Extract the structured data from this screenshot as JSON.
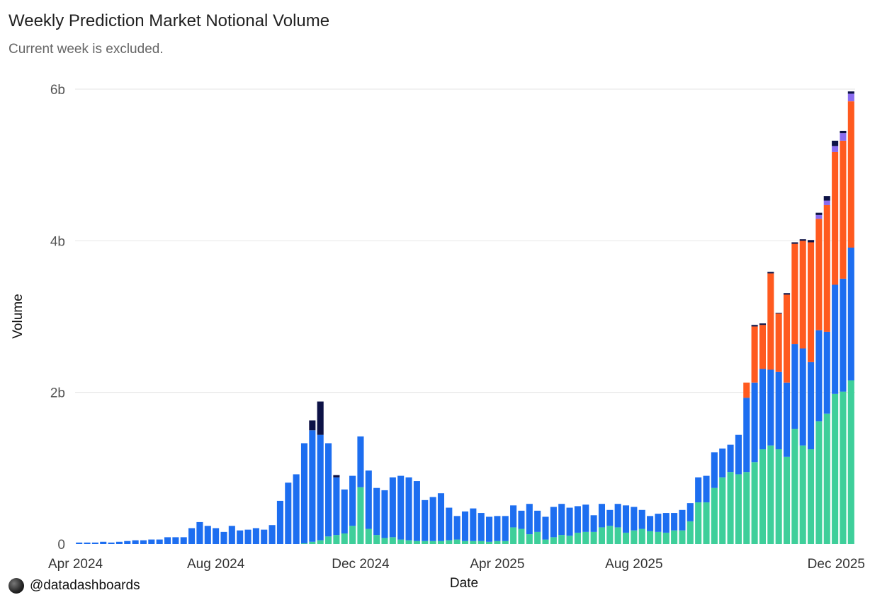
{
  "chart_data": {
    "type": "bar",
    "stacked": true,
    "title": "Weekly Prediction Market Notional Volume",
    "subtitle": "Current week is excluded.",
    "xlabel": "Date",
    "ylabel": "Volume",
    "y_ticks": [
      {
        "value": 0,
        "label": "0"
      },
      {
        "value": 2,
        "label": "2b"
      },
      {
        "value": 4,
        "label": "4b"
      },
      {
        "value": 6,
        "label": "6b"
      }
    ],
    "ylim": [
      0,
      6
    ],
    "y_unit": "billions",
    "x_ticks": [
      {
        "label": "Apr 2024",
        "week_index": 0
      },
      {
        "label": "Aug 2024",
        "week_index": 17
      },
      {
        "label": "Dec 2024",
        "week_index": 35
      },
      {
        "label": "Apr 2025",
        "week_index": 52
      },
      {
        "label": "Aug 2025",
        "week_index": 69
      },
      {
        "label": "Dec 2025",
        "week_index": 87
      }
    ],
    "grid": "horizontal",
    "legend": "none",
    "series": [
      {
        "color": "#3ecf9a",
        "values": [
          0,
          0,
          0,
          0,
          0,
          0,
          0,
          0,
          0,
          0,
          0,
          0,
          0,
          0,
          0,
          0,
          0,
          0,
          0,
          0,
          0,
          0,
          0,
          0,
          0,
          0,
          0,
          0,
          0.01,
          0.03,
          0.05,
          0.1,
          0.12,
          0.14,
          0.24,
          0.75,
          0.2,
          0.12,
          0.08,
          0.09,
          0.06,
          0.05,
          0.04,
          0.04,
          0.04,
          0.04,
          0.05,
          0.06,
          0.04,
          0.04,
          0.04,
          0.03,
          0.04,
          0.04,
          0.22,
          0.2,
          0.13,
          0.16,
          0.06,
          0.09,
          0.12,
          0.11,
          0.15,
          0.16,
          0.16,
          0.22,
          0.24,
          0.22,
          0.15,
          0.18,
          0.2,
          0.17,
          0.16,
          0.15,
          0.18,
          0.18,
          0.3,
          0.55,
          0.55,
          0.74,
          0.88,
          0.95,
          0.92,
          0.95,
          1.08,
          1.25,
          1.3,
          1.25,
          1.15,
          1.52,
          1.3,
          1.25,
          1.62,
          1.72,
          1.98,
          2.01,
          2.16
        ]
      },
      {
        "color": "#1d6ef0",
        "values": [
          0.02,
          0.02,
          0.02,
          0.03,
          0.02,
          0.03,
          0.04,
          0.05,
          0.05,
          0.06,
          0.06,
          0.09,
          0.09,
          0.09,
          0.21,
          0.29,
          0.24,
          0.21,
          0.16,
          0.24,
          0.18,
          0.19,
          0.21,
          0.19,
          0.25,
          0.57,
          0.81,
          0.92,
          1.32,
          1.47,
          1.39,
          1.23,
          0.76,
          0.58,
          0.66,
          0.67,
          0.77,
          0.62,
          0.63,
          0.79,
          0.84,
          0.83,
          0.79,
          0.54,
          0.58,
          0.63,
          0.43,
          0.31,
          0.39,
          0.43,
          0.37,
          0.33,
          0.33,
          0.33,
          0.29,
          0.24,
          0.4,
          0.28,
          0.3,
          0.4,
          0.41,
          0.37,
          0.35,
          0.36,
          0.22,
          0.31,
          0.21,
          0.31,
          0.36,
          0.31,
          0.25,
          0.2,
          0.24,
          0.26,
          0.23,
          0.27,
          0.24,
          0.33,
          0.35,
          0.47,
          0.38,
          0.36,
          0.52,
          0.98,
          1.05,
          1.06,
          1.0,
          1.02,
          0.98,
          1.12,
          1.28,
          1.15,
          1.2,
          1.08,
          1.44,
          1.49,
          1.75
        ]
      },
      {
        "color": "#ff5a1f",
        "values": [
          0,
          0,
          0,
          0,
          0,
          0,
          0,
          0,
          0,
          0,
          0,
          0,
          0,
          0,
          0,
          0,
          0,
          0,
          0,
          0,
          0,
          0,
          0,
          0,
          0,
          0,
          0,
          0,
          0,
          0,
          0,
          0,
          0,
          0,
          0,
          0,
          0,
          0,
          0,
          0,
          0,
          0,
          0,
          0,
          0,
          0,
          0,
          0,
          0,
          0,
          0,
          0,
          0,
          0,
          0,
          0,
          0,
          0,
          0,
          0,
          0,
          0,
          0,
          0,
          0,
          0,
          0,
          0,
          0,
          0,
          0,
          0,
          0,
          0,
          0,
          0,
          0,
          0,
          0,
          0,
          0,
          0,
          0,
          0.2,
          0.74,
          0.58,
          1.27,
          0.77,
          1.16,
          1.32,
          1.42,
          1.58,
          1.47,
          1.67,
          1.75,
          1.82,
          1.93
        ]
      },
      {
        "color": "#8a6cf0",
        "values": [
          0,
          0,
          0,
          0,
          0,
          0,
          0,
          0,
          0,
          0,
          0,
          0,
          0,
          0,
          0,
          0,
          0,
          0,
          0,
          0,
          0,
          0,
          0,
          0,
          0,
          0,
          0,
          0,
          0,
          0,
          0,
          0,
          0,
          0,
          0,
          0,
          0,
          0,
          0,
          0,
          0,
          0,
          0,
          0,
          0,
          0,
          0,
          0,
          0,
          0,
          0,
          0,
          0,
          0,
          0,
          0,
          0,
          0,
          0,
          0,
          0,
          0,
          0,
          0,
          0,
          0,
          0,
          0,
          0,
          0,
          0,
          0,
          0,
          0,
          0,
          0,
          0,
          0,
          0,
          0,
          0,
          0,
          0,
          0,
          0,
          0,
          0,
          0,
          0,
          0,
          0,
          0,
          0.05,
          0.06,
          0.08,
          0.1,
          0.1
        ]
      },
      {
        "color": "#0d1246",
        "values": [
          0,
          0,
          0,
          0,
          0,
          0,
          0,
          0,
          0,
          0,
          0,
          0,
          0,
          0,
          0,
          0,
          0,
          0,
          0,
          0,
          0,
          0,
          0,
          0,
          0,
          0,
          0,
          0,
          0,
          0.13,
          0.44,
          0,
          0.03,
          0,
          0,
          0,
          0,
          0,
          0,
          0,
          0,
          0,
          0,
          0,
          0,
          0,
          0,
          0,
          0,
          0,
          0,
          0,
          0,
          0,
          0,
          0,
          0,
          0,
          0,
          0,
          0,
          0,
          0,
          0,
          0,
          0,
          0,
          0,
          0,
          0,
          0,
          0,
          0,
          0,
          0,
          0,
          0,
          0,
          0,
          0,
          0,
          0,
          0,
          0,
          0.02,
          0.02,
          0.02,
          0.01,
          0.02,
          0.02,
          0.02,
          0.03,
          0.03,
          0.06,
          0.07,
          0.03,
          0.03
        ]
      }
    ]
  },
  "watermark": {
    "icon": "pen-nib-logo-icon",
    "text": "@datadashboards"
  },
  "colors": {
    "grid": "#e6e6e6",
    "axis_text": "#555555",
    "background": "#ffffff"
  }
}
